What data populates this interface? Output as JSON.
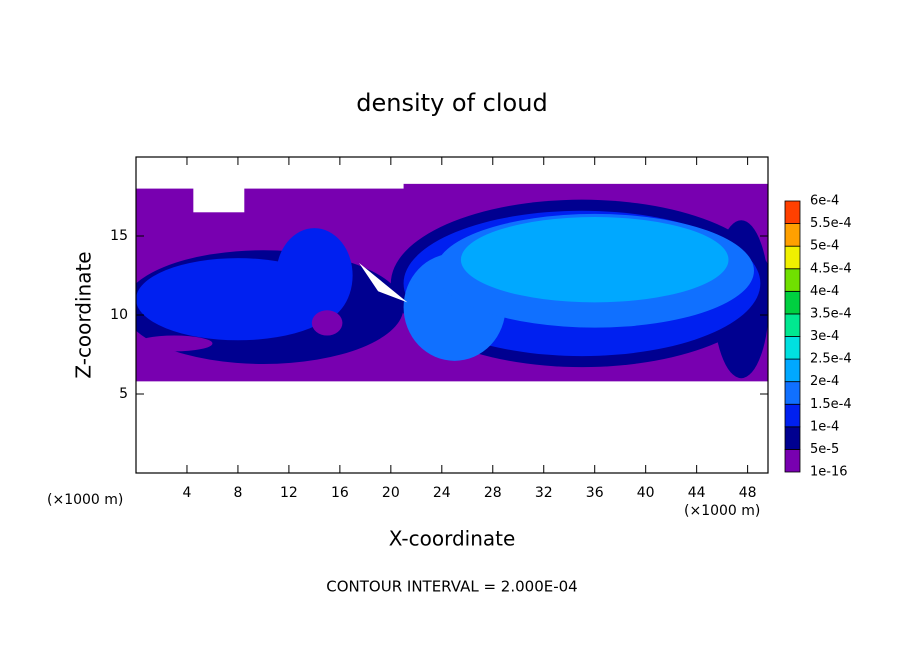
{
  "chart_data": {
    "type": "contour",
    "title": "density of cloud",
    "x_label": "X-coordinate",
    "y_label": "Z-coordinate",
    "x_unit": "(×1000 m)",
    "y_unit": "(×1000 m)",
    "footer": "CONTOUR INTERVAL = 2.000E-04",
    "xlim": [
      0,
      49.6
    ],
    "ylim": [
      0,
      20
    ],
    "xticks": [
      4,
      8,
      12,
      16,
      20,
      24,
      28,
      32,
      36,
      40,
      44,
      48
    ],
    "yticks": [
      5,
      10,
      15
    ],
    "colorbar": {
      "levels": [
        {
          "value": 1e-16,
          "label": "1e-16"
        },
        {
          "value": 5e-05,
          "label": "5e-5"
        },
        {
          "value": 0.0001,
          "label": "1e-4"
        },
        {
          "value": 0.00015,
          "label": "1.5e-4"
        },
        {
          "value": 0.0002,
          "label": "2e-4"
        },
        {
          "value": 0.00025,
          "label": "2.5e-4"
        },
        {
          "value": 0.0003,
          "label": "3e-4"
        },
        {
          "value": 0.00035,
          "label": "3.5e-4"
        },
        {
          "value": 0.0004,
          "label": "4e-4"
        },
        {
          "value": 0.00045,
          "label": "4.5e-4"
        },
        {
          "value": 0.0005,
          "label": "5e-4"
        },
        {
          "value": 0.00055,
          "label": "5.5e-4"
        },
        {
          "value": 0.0006,
          "label": "6e-4"
        }
      ],
      "colors": [
        "#7800b0",
        "#000090",
        "#0020f0",
        "#1070ff",
        "#00a8ff",
        "#00e0e0",
        "#00e890",
        "#00d040",
        "#70e000",
        "#f0f000",
        "#ffa000",
        "#ff4000",
        "#ff8080"
      ]
    }
  }
}
